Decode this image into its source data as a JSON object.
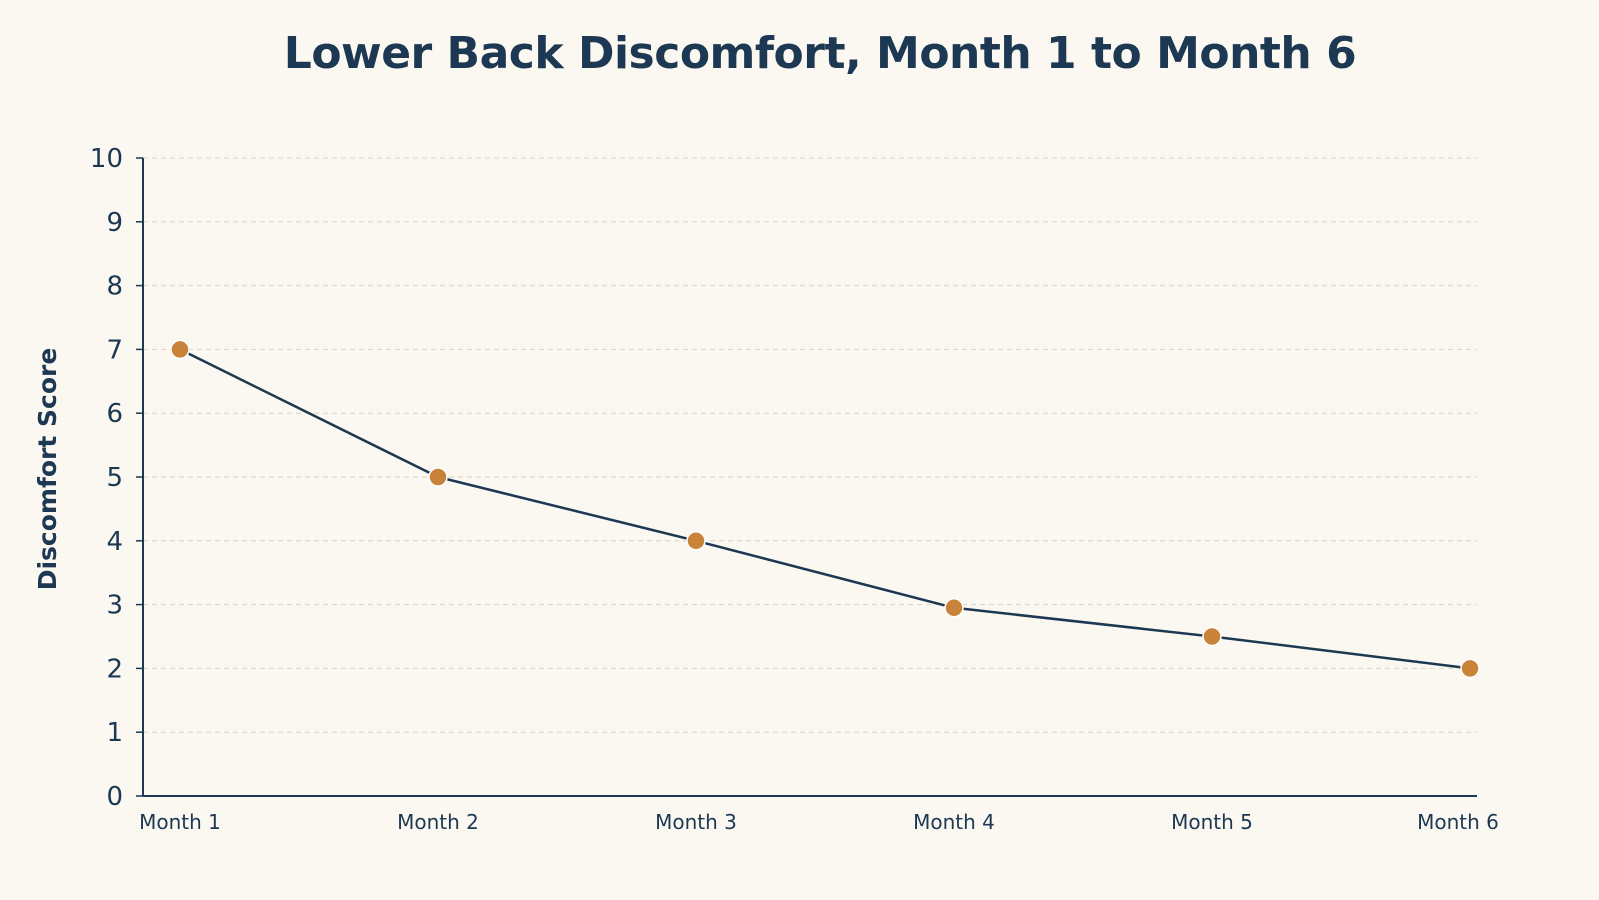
{
  "chart_data": {
    "type": "line",
    "title": "Lower Back Discomfort, Month 1 to Month 6",
    "ylabel": "Discomfort Score",
    "xlabel": "",
    "categories": [
      "Month 1",
      "Month 2",
      "Month 3",
      "Month 4",
      "Month 5",
      "Month 6"
    ],
    "series": [
      {
        "values": [
          7,
          5,
          4,
          2.95,
          2.5,
          2
        ]
      }
    ],
    "ylim": [
      0,
      10
    ],
    "yticks": [
      "0",
      "1",
      "2",
      "3",
      "4",
      "5",
      "6",
      "7",
      "8",
      "9",
      "10"
    ],
    "grid": true,
    "legend": "none",
    "colors": {
      "line": "#1C3852",
      "marker": "#C98338",
      "grid": "#D9D4C8",
      "axis": "#1C3852",
      "background": "#FBF8F1"
    }
  }
}
